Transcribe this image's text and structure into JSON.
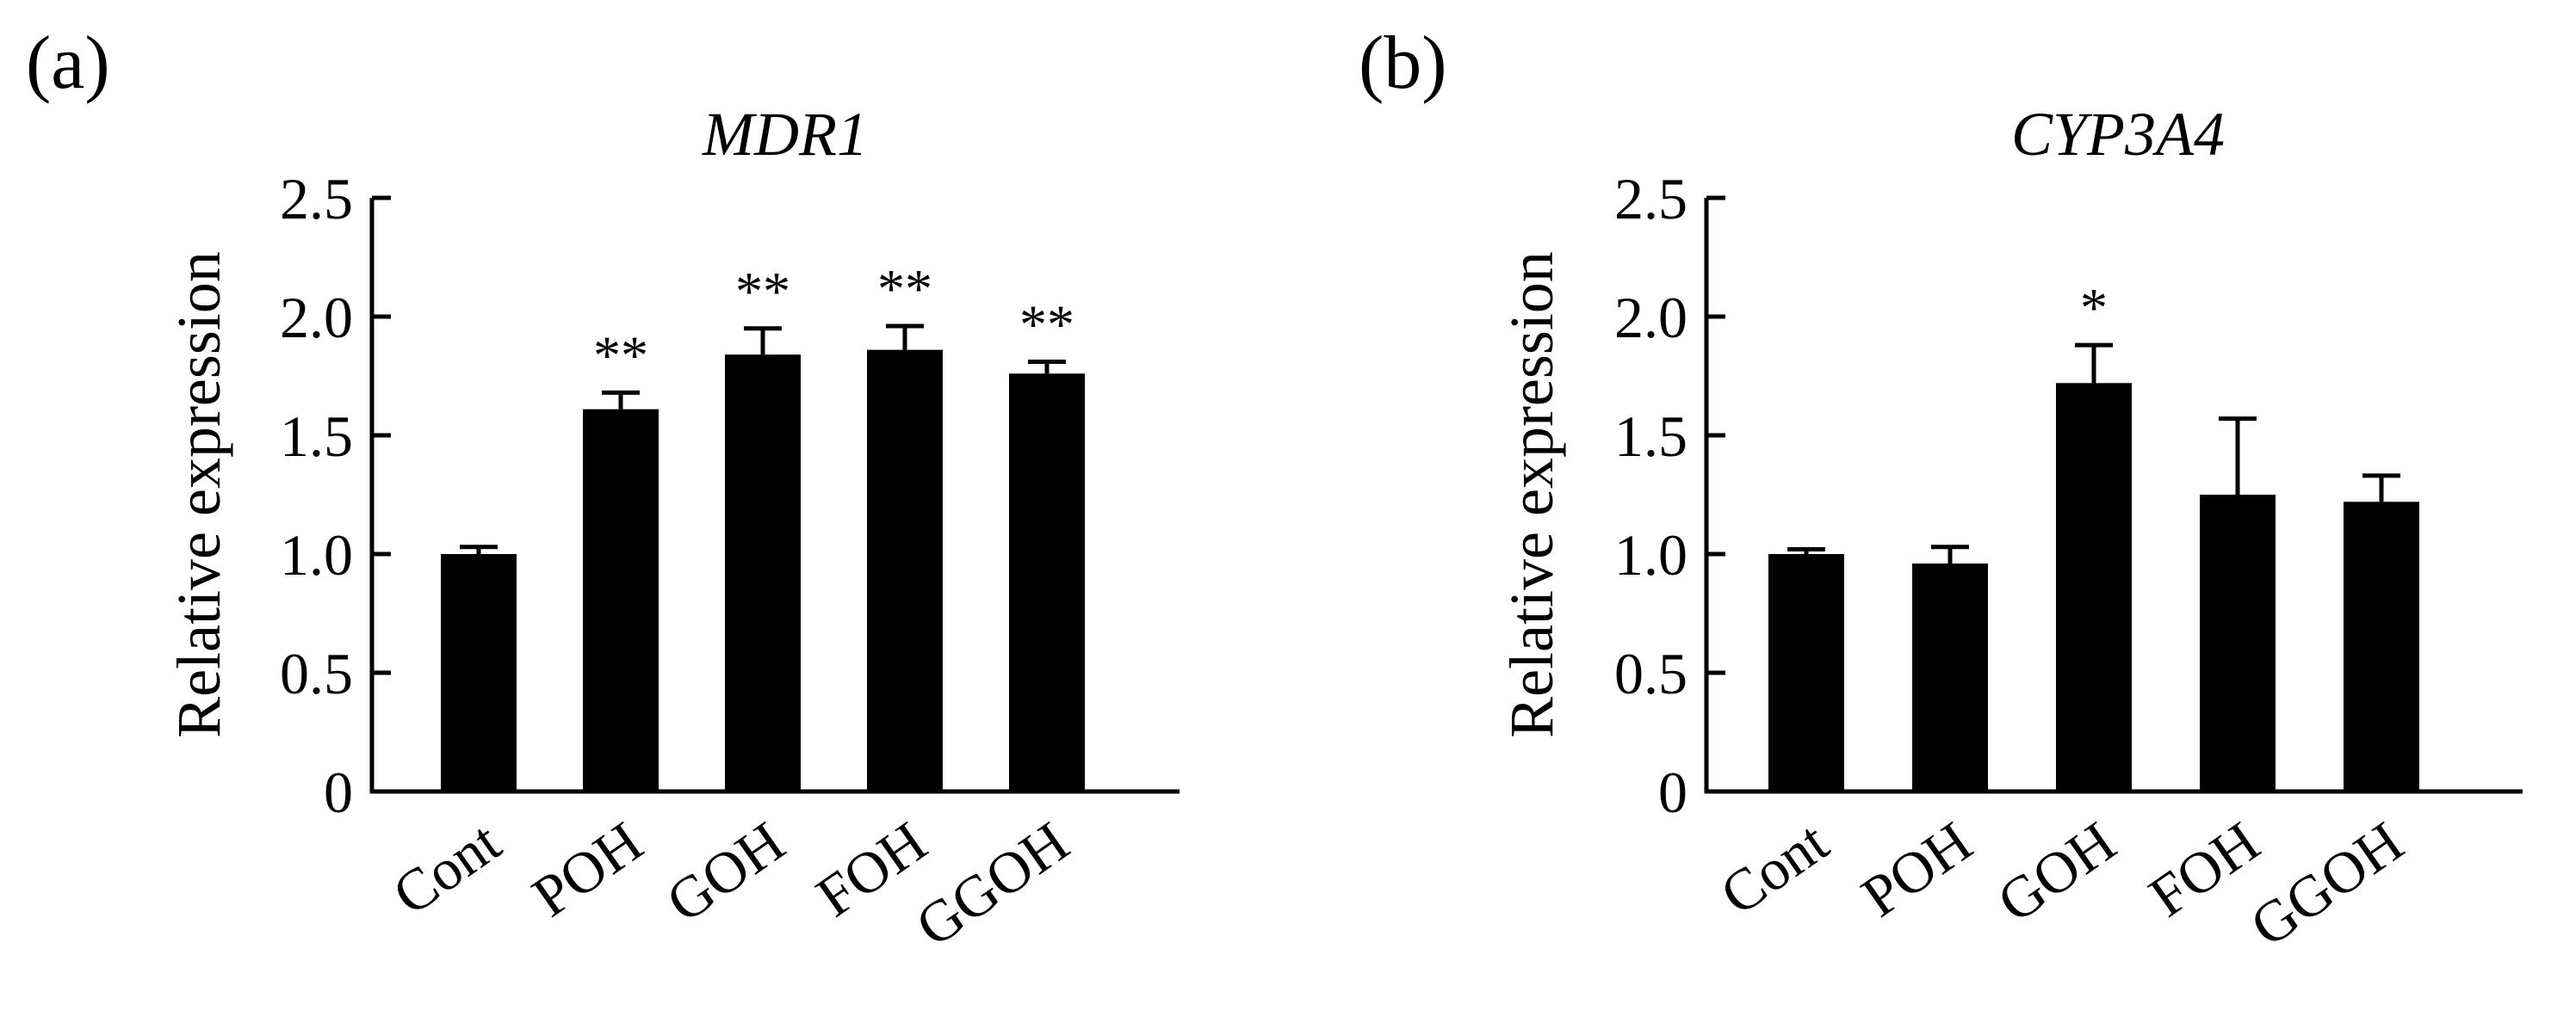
{
  "figure": {
    "panels": [
      {
        "letter": "(a)"
      },
      {
        "letter": "(b)"
      }
    ]
  },
  "chart_data": [
    {
      "type": "bar",
      "title": "MDR1",
      "xlabel": "",
      "ylabel": "Relative expression",
      "ylim": [
        0,
        2.5
      ],
      "yticks": [
        0,
        0.5,
        1.0,
        1.5,
        2.0,
        2.5
      ],
      "ytick_labels": [
        "0",
        "0.5",
        "1.0",
        "1.5",
        "2.0",
        "2.5"
      ],
      "categories": [
        "Cont",
        "POH",
        "GOH",
        "FOH",
        "GGOH"
      ],
      "values": [
        1.0,
        1.61,
        1.84,
        1.86,
        1.76
      ],
      "error_up": [
        0.03,
        0.07,
        0.11,
        0.1,
        0.05
      ],
      "significance": [
        "",
        "**",
        "**",
        "**",
        "**"
      ],
      "bar_color": "#000000",
      "grid": false
    },
    {
      "type": "bar",
      "title": "CYP3A4",
      "xlabel": "",
      "ylabel": "Relative expression",
      "ylim": [
        0,
        2.5
      ],
      "yticks": [
        0,
        0.5,
        1.0,
        1.5,
        2.0,
        2.5
      ],
      "ytick_labels": [
        "0",
        "0.5",
        "1.0",
        "1.5",
        "2.0",
        "2.5"
      ],
      "categories": [
        "Cont",
        "POH",
        "GOH",
        "FOH",
        "GGOH"
      ],
      "values": [
        1.0,
        0.96,
        1.72,
        1.25,
        1.22
      ],
      "error_up": [
        0.02,
        0.07,
        0.16,
        0.32,
        0.11
      ],
      "significance": [
        "",
        "",
        "*",
        "",
        ""
      ],
      "bar_color": "#000000",
      "grid": false
    }
  ]
}
